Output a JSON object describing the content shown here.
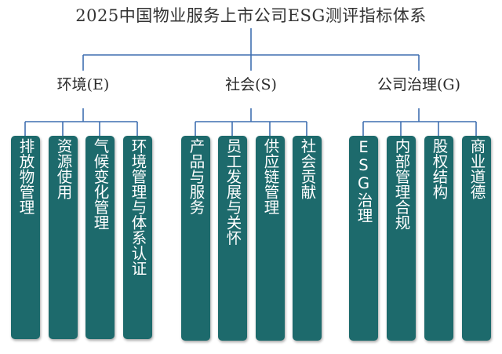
{
  "title": "2025中国物业服务上市公司ESG测评指标体系",
  "colors": {
    "card": "#1d6a6c",
    "line": "#3f6fb1",
    "card_text": "#ffffff"
  },
  "categories": [
    {
      "label": "环境(E)",
      "items": [
        "排放物管理",
        "资源使用",
        "气候变化管理",
        "环境管理与体系认证"
      ]
    },
    {
      "label": "社会(S)",
      "items": [
        "产品与服务",
        "员工发展与关怀",
        "供应链管理",
        "社会贡献"
      ]
    },
    {
      "label": "公司治理(G)",
      "items": [
        "ESG治理",
        "内部管理合规",
        "股权结构",
        "商业道德"
      ]
    }
  ]
}
